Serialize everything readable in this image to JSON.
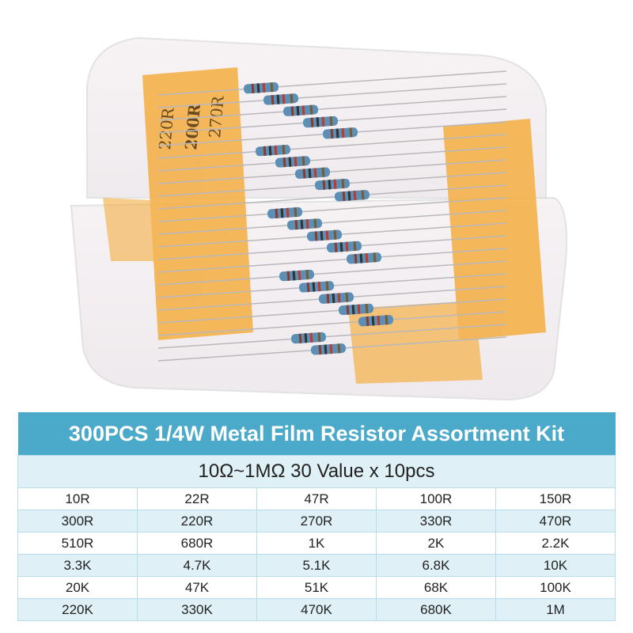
{
  "product_image": {
    "description_icon": "resistor-box-photo",
    "strip_labels": [
      "220R",
      "200R",
      "270R"
    ],
    "colors": {
      "strip": "#f4b14a",
      "resistor": "#5b8fb5",
      "box": "#f2eef0"
    }
  },
  "table": {
    "title": "300PCS 1/4W Metal Film Resistor Assortment Kit",
    "subtitle": "10Ω~1MΩ 30 Value x 10pcs",
    "header_color": "#4baac9",
    "alt_row_color": "#dff0f6",
    "rows": [
      [
        "10R",
        "22R",
        "47R",
        "100R",
        "150R"
      ],
      [
        "300R",
        "220R",
        "270R",
        "330R",
        "470R"
      ],
      [
        "510R",
        "680R",
        "1K",
        "2K",
        "2.2K"
      ],
      [
        "3.3K",
        "4.7K",
        "5.1K",
        "6.8K",
        "10K"
      ],
      [
        "20K",
        "47K",
        "51K",
        "68K",
        "100K"
      ],
      [
        "220K",
        "330K",
        "470K",
        "680K",
        "1M"
      ]
    ]
  }
}
